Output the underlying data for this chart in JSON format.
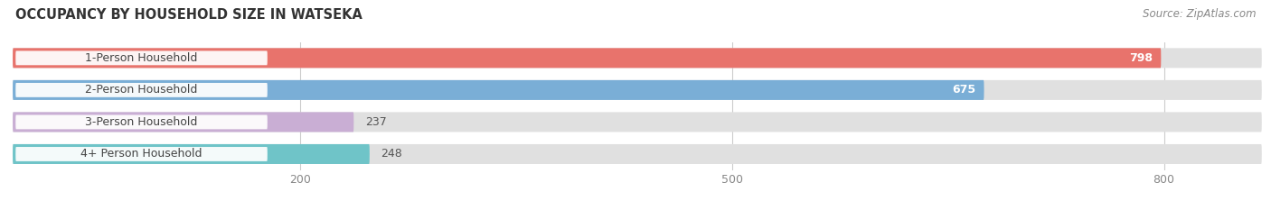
{
  "title": "OCCUPANCY BY HOUSEHOLD SIZE IN WATSEKA",
  "source": "Source: ZipAtlas.com",
  "categories": [
    "1-Person Household",
    "2-Person Household",
    "3-Person Household",
    "4+ Person Household"
  ],
  "values": [
    798,
    675,
    237,
    248
  ],
  "bar_colors": [
    "#e8736c",
    "#7aaed6",
    "#c9aed4",
    "#6fc4c8"
  ],
  "bg_color": "#ffffff",
  "bar_bg_color": "#e0e0e0",
  "xlim": [
    0,
    870
  ],
  "xticks": [
    200,
    500,
    800
  ],
  "figsize": [
    14.06,
    2.33
  ],
  "dpi": 100,
  "title_fontsize": 10.5,
  "value_fontsize": 9,
  "category_fontsize": 9,
  "source_fontsize": 8.5
}
